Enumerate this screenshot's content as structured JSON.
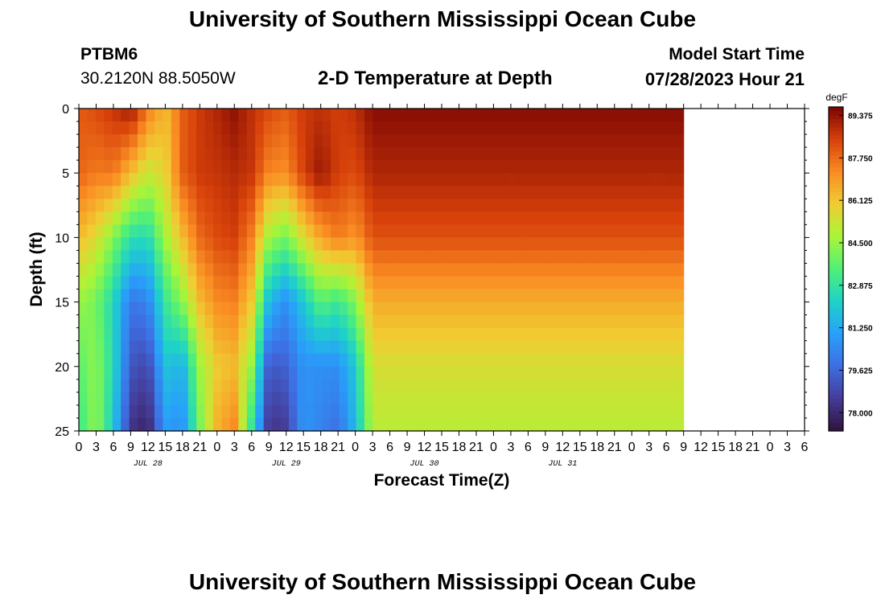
{
  "header": {
    "title": "University of Southern Mississippi Ocean Cube",
    "station": "PTBM6",
    "coords": "30.2120N  88.5050W",
    "subtitle": "2-D Temperature at Depth",
    "model_start_label": "Model Start Time",
    "model_start_value": "07/28/2023 Hour 21"
  },
  "footer": {
    "title": "University of Southern Mississippi Ocean Cube"
  },
  "chart_data": {
    "type": "heatmap",
    "title": "2-D Temperature at Depth",
    "xlabel": "Forecast Time(Z)",
    "ylabel": "Depth (ft)",
    "units": "degF",
    "x_hours": [
      0,
      3,
      6,
      9,
      12,
      15,
      18,
      21,
      24,
      27,
      30,
      33,
      36,
      39,
      42,
      45,
      48,
      51,
      54,
      57,
      60,
      63,
      66,
      69,
      72,
      75,
      78,
      81,
      84,
      87,
      90,
      93,
      96,
      99,
      102,
      105
    ],
    "x_tick_labels": [
      "0",
      "3",
      "6",
      "9",
      "12",
      "15",
      "18",
      "21",
      "0",
      "3",
      "6",
      "9",
      "12",
      "15",
      "18",
      "21",
      "0",
      "3",
      "6",
      "9",
      "12",
      "15",
      "18",
      "21",
      "0",
      "3",
      "6",
      "9",
      "12",
      "15",
      "18",
      "21",
      "0",
      "3",
      "6",
      "9",
      "12",
      "15",
      "18",
      "21",
      "0",
      "3",
      "6"
    ],
    "date_labels": [
      {
        "label": "JUL 28",
        "hour": 12
      },
      {
        "label": "JUL 29",
        "hour": 36
      },
      {
        "label": "JUL 30",
        "hour": 60
      },
      {
        "label": "JUL 31",
        "hour": 84
      }
    ],
    "y_ticks": [
      0,
      5,
      10,
      15,
      20,
      25
    ],
    "ylim": [
      0,
      25
    ],
    "depths_ft": [
      0,
      5,
      10,
      15,
      20,
      25
    ],
    "temperature_degF": [
      [
        88.0,
        88.3,
        88.7,
        89.3,
        87.5,
        86.3,
        88.0,
        88.6,
        89.0,
        89.4,
        88.8,
        88.3,
        88.0,
        88.6,
        88.8,
        88.5,
        88.8,
        89.5
      ],
      [
        87.9,
        87.5,
        87.6,
        86.3,
        85.2,
        85.8,
        88.0,
        88.6,
        88.7,
        88.9,
        88.7,
        87.3,
        87.2,
        88.5,
        89.3,
        88.5,
        88.3,
        89.0
      ],
      [
        86.3,
        85.6,
        84.2,
        82.7,
        82.5,
        84.7,
        86.3,
        87.8,
        88.3,
        88.5,
        87.4,
        84.6,
        84.0,
        85.6,
        86.8,
        87.5,
        87.0,
        88.2
      ],
      [
        84.5,
        84.0,
        82.4,
        80.0,
        80.3,
        83.0,
        84.3,
        86.3,
        87.2,
        87.4,
        86.0,
        81.6,
        80.6,
        82.0,
        83.6,
        83.0,
        84.2,
        86.6
      ],
      [
        83.6,
        84.4,
        82.5,
        79.2,
        78.8,
        81.9,
        81.4,
        84.6,
        86.0,
        86.3,
        84.4,
        79.2,
        79.5,
        80.7,
        80.6,
        80.6,
        82.0,
        85.5
      ],
      [
        83.0,
        84.5,
        82.0,
        78.3,
        77.8,
        80.9,
        80.6,
        84.0,
        86.5,
        87.3,
        82.8,
        78.3,
        78.5,
        80.8,
        80.3,
        79.8,
        81.6,
        85.0
      ]
    ],
    "colorbar": {
      "label": "degF",
      "min": 77.3,
      "max": 89.7,
      "tick_values": [
        89.375,
        87.75,
        86.125,
        84.5,
        82.875,
        81.25,
        79.625,
        78.0
      ],
      "tick_labels": [
        "89.375",
        "87.750",
        "86.125",
        "84.500",
        "82.875",
        "81.250",
        "79.625",
        "78.000"
      ]
    }
  }
}
